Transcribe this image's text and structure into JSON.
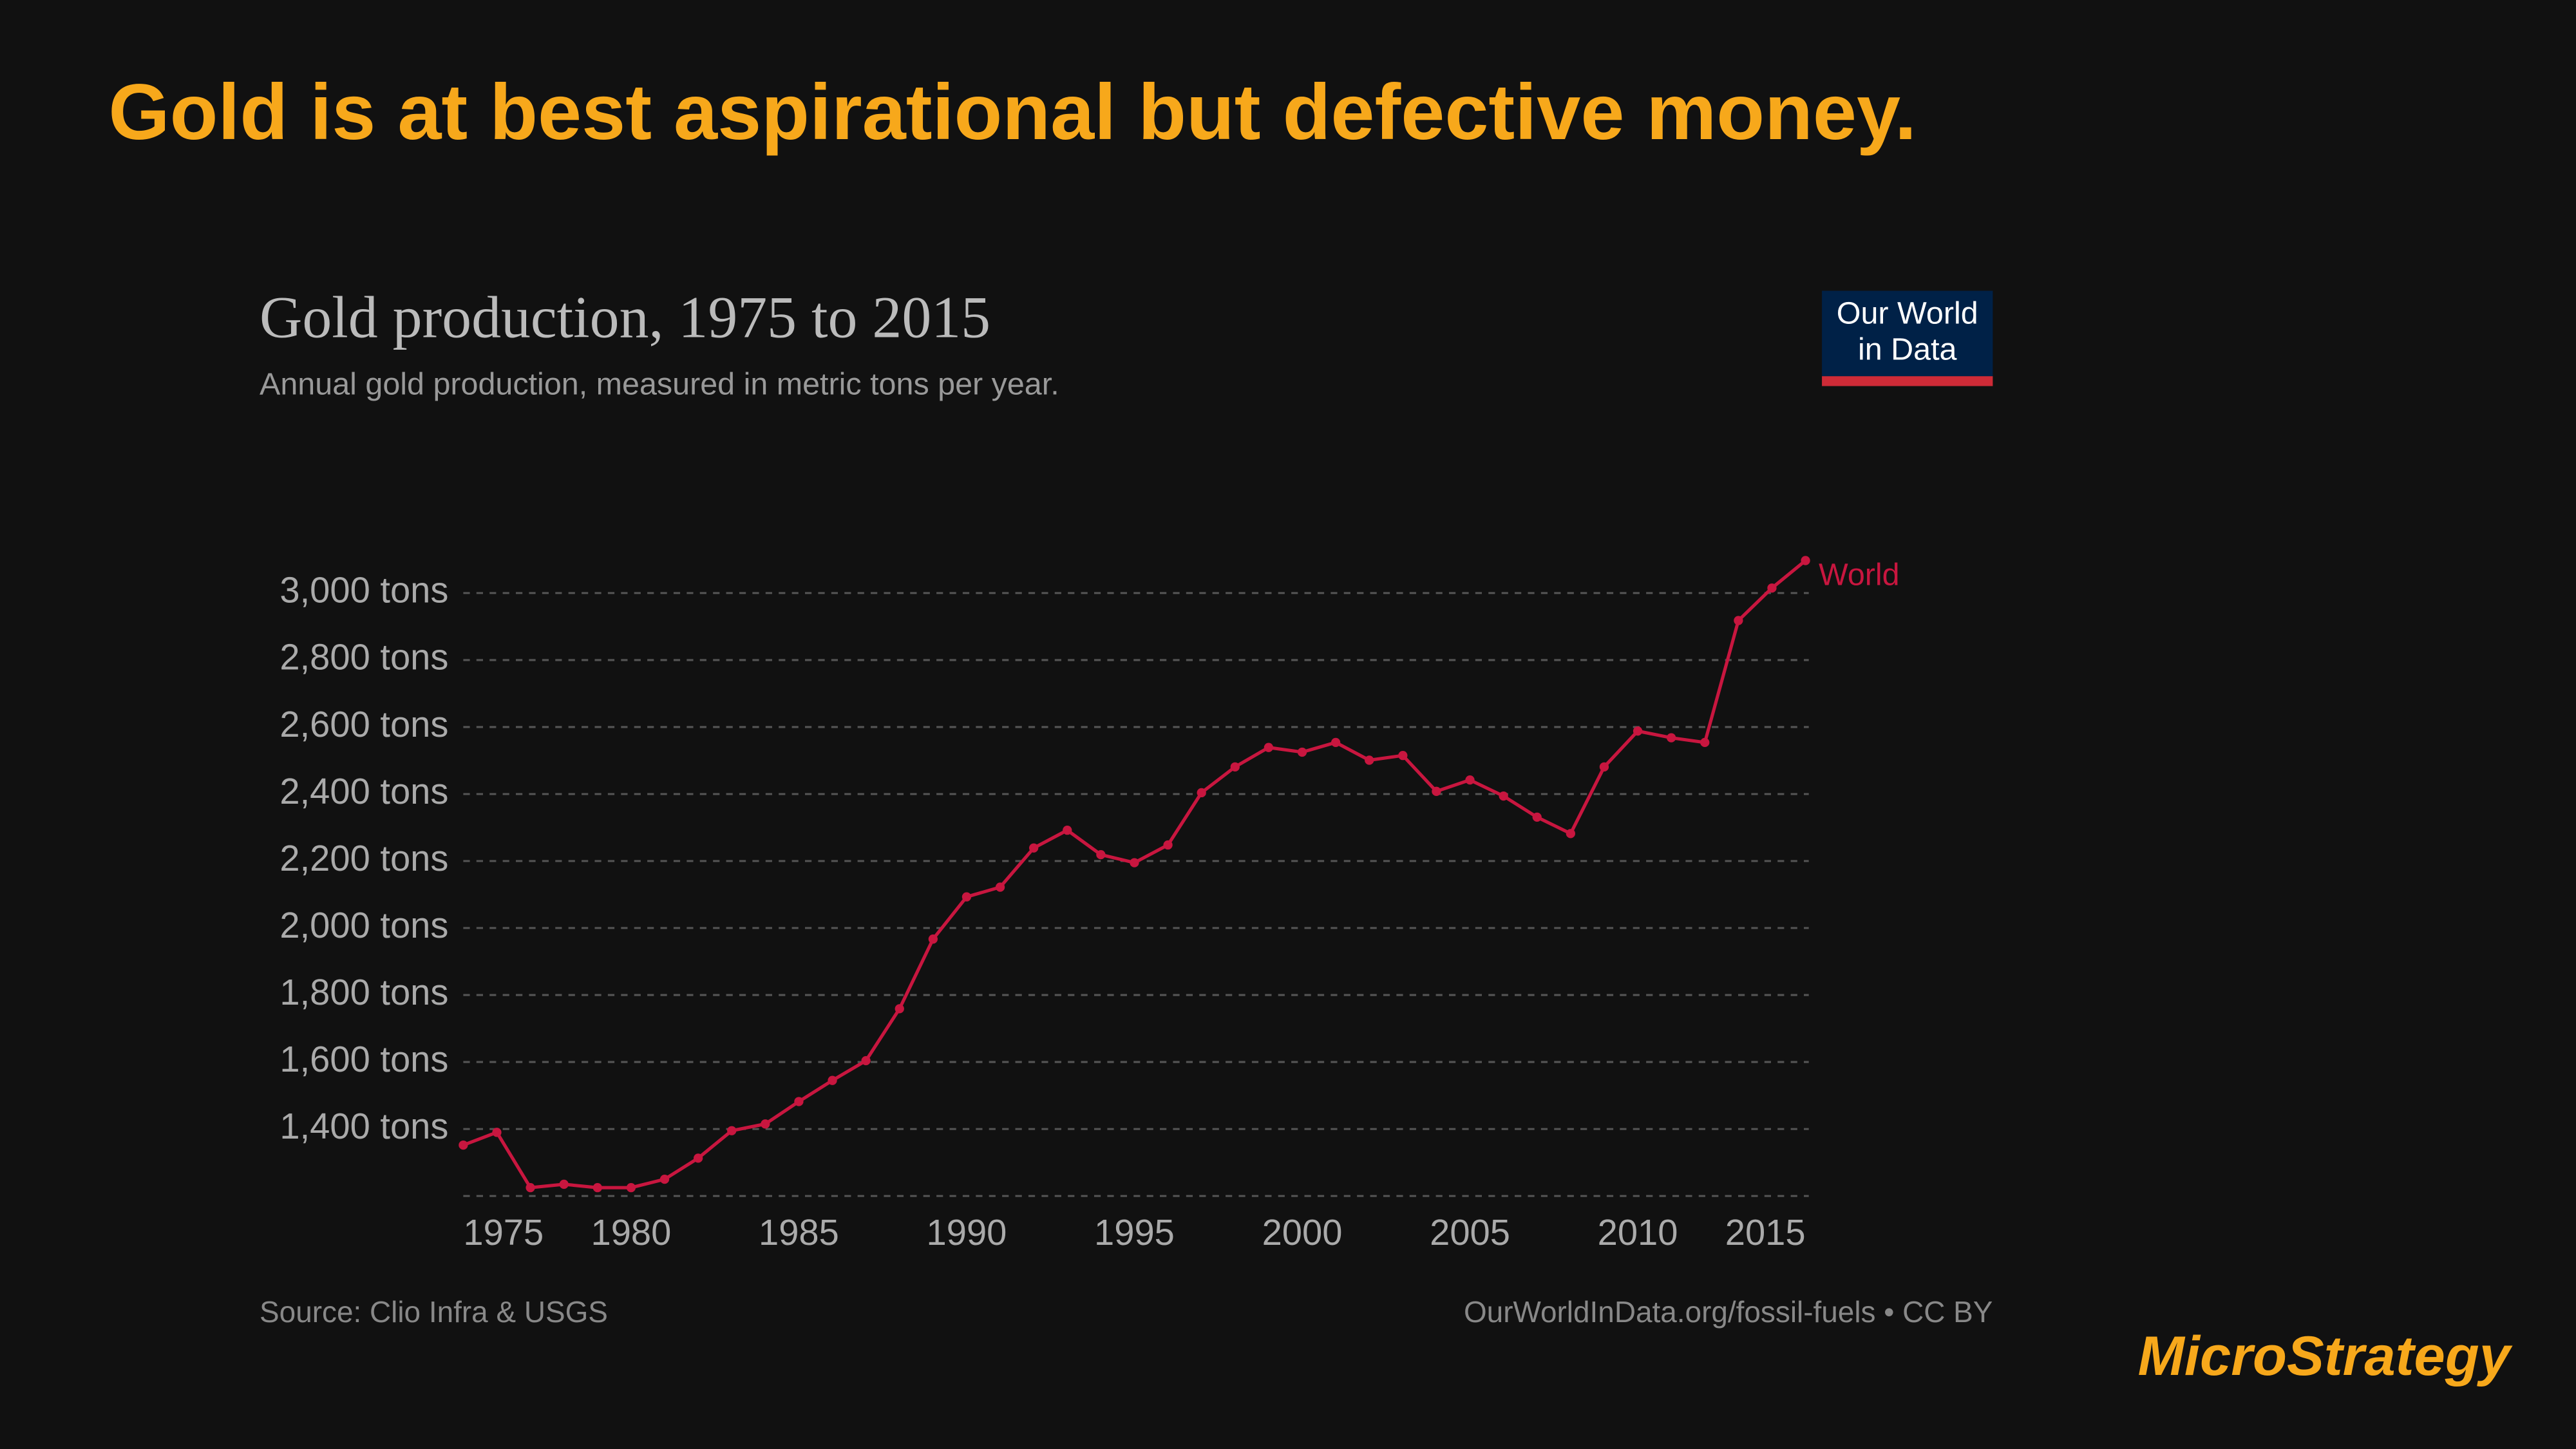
{
  "header": {
    "title": "Gold is at best aspirational but defective money."
  },
  "chart_data": {
    "type": "line",
    "title": "Gold production, 1975 to 2015",
    "subtitle": "Annual gold production, measured in metric tons per year.",
    "logo": [
      "Our World",
      "in Data"
    ],
    "source": "Source: Clio Infra & USGS",
    "credit": "OurWorldInData.org/fossil-fuels • CC BY",
    "x": [
      1975,
      1976,
      1977,
      1978,
      1979,
      1980,
      1981,
      1982,
      1983,
      1984,
      1985,
      1986,
      1987,
      1988,
      1989,
      1990,
      1991,
      1992,
      1993,
      1994,
      1995,
      1996,
      1997,
      1998,
      1999,
      2000,
      2001,
      2002,
      2003,
      2004,
      2005,
      2006,
      2007,
      2008,
      2009,
      2010,
      2011,
      2012,
      2013,
      2014,
      2015
    ],
    "series": [
      {
        "name": "World",
        "color": "#c8163f",
        "values": [
          1352,
          1390,
          1225,
          1235,
          1225,
          1225,
          1250,
          1313,
          1395,
          1415,
          1482,
          1545,
          1604,
          1759,
          1967,
          2093,
          2122,
          2239,
          2292,
          2219,
          2195,
          2248,
          2404,
          2481,
          2539,
          2525,
          2554,
          2501,
          2515,
          2408,
          2442,
          2394,
          2331,
          2282,
          2481,
          2588,
          2568,
          2554,
          2918,
          3015,
          3097
        ]
      }
    ],
    "xlim": [
      1975,
      2015
    ],
    "xticks": [
      1975,
      1980,
      1985,
      1990,
      1995,
      2000,
      2005,
      2010,
      2015
    ],
    "ylim": [
      1200,
      3100
    ],
    "yticks": [
      {
        "value": 1400,
        "label": "1,400 tons"
      },
      {
        "value": 1600,
        "label": "1,600 tons"
      },
      {
        "value": 1800,
        "label": "1,800 tons"
      },
      {
        "value": 2000,
        "label": "2,000 tons"
      },
      {
        "value": 2200,
        "label": "2,200 tons"
      },
      {
        "value": 2400,
        "label": "2,400 tons"
      },
      {
        "value": 2600,
        "label": "2,600 tons"
      },
      {
        "value": 2800,
        "label": "2,800 tons"
      },
      {
        "value": 3000,
        "label": "3,000 tons"
      }
    ],
    "grid": true
  },
  "footer": {
    "brand": "MicroStrategy"
  }
}
